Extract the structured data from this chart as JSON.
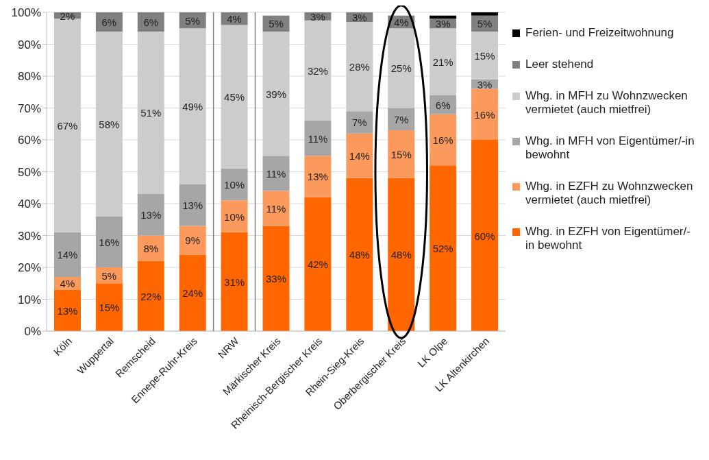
{
  "chart_data": {
    "type": "bar",
    "stacked": true,
    "grid": "y",
    "legend": "right",
    "categories": [
      "Köln",
      "Wuppertal",
      "Remscheid",
      "Ennepe-Ruhr-Kreis",
      "NRW",
      "Märkischer Kreis",
      "Rheinisch-Bergischer Kreis",
      "Rhein-Sieg-Kreis",
      "Oberbergischer Kreis",
      "LK Olpe",
      "LK Altenkirchen"
    ],
    "ylim": [
      0,
      100
    ],
    "yticks": [
      {
        "value": 0,
        "label": "0%"
      },
      {
        "value": 10,
        "label": "10%"
      },
      {
        "value": 20,
        "label": "20%"
      },
      {
        "value": 30,
        "label": "30%"
      },
      {
        "value": 40,
        "label": "40%"
      },
      {
        "value": 50,
        "label": "50%"
      },
      {
        "value": 60,
        "label": "60%"
      },
      {
        "value": 70,
        "label": "70%"
      },
      {
        "value": 80,
        "label": "80%"
      },
      {
        "value": 90,
        "label": "90%"
      },
      {
        "value": 100,
        "label": "100%"
      }
    ],
    "series": [
      {
        "name": "Whg. in EZFH von Eigentümer/-in bewohnt",
        "color": "#ff6600",
        "values": [
          13,
          15,
          22,
          24,
          31,
          33,
          42,
          48,
          48,
          52,
          60
        ],
        "value_labels": [
          "13%",
          "15%",
          "22%",
          "24%",
          "31%",
          "33%",
          "42%",
          "48%",
          "48%",
          "52%",
          "60%"
        ]
      },
      {
        "name": "Whg. in EZFH zu Wohnzwecken vermietet (auch mietfrei)",
        "color": "#fb9a5c",
        "values": [
          4,
          5,
          8,
          9,
          10,
          11,
          13,
          14,
          15,
          16,
          16
        ],
        "value_labels": [
          "4%",
          "5%",
          "8%",
          "9%",
          "10%",
          "11%",
          "13%",
          "14%",
          "15%",
          "16%",
          "16%"
        ]
      },
      {
        "name": "Whg. in MFH von Eigentümer/-in bewohnt",
        "color": "#a6a6a6",
        "values": [
          14,
          16,
          13,
          13,
          10,
          11,
          11,
          7,
          7,
          6,
          3
        ],
        "value_labels": [
          "14%",
          "16%",
          "13%",
          "13%",
          "10%",
          "11%",
          "11%",
          "7%",
          "7%",
          "6%",
          "3%"
        ]
      },
      {
        "name": "Whg. in MFH zu Wohnzwecken vermietet (auch mietfrei)",
        "color": "#cccccc",
        "values": [
          67,
          58,
          51,
          49,
          45,
          39,
          31.5,
          28,
          25,
          21,
          15
        ],
        "value_labels": [
          "67%",
          "58%",
          "51%",
          "49%",
          "45%",
          "39%",
          "32%",
          "28%",
          "25%",
          "21%",
          "15%"
        ]
      },
      {
        "name": "Leer stehend",
        "color": "#808080",
        "values": [
          2,
          6,
          6,
          5,
          4,
          5,
          2.5,
          3,
          4,
          3,
          5
        ],
        "value_labels": [
          "2%",
          "6%",
          "6%",
          "5%",
          "4%",
          "5%",
          "3%",
          "3%",
          "4%",
          "3%",
          "5%"
        ]
      },
      {
        "name": "Ferien- und Freizeitwohnung",
        "color": "#000000",
        "values": [
          0,
          0,
          0,
          0,
          0,
          0,
          0,
          0,
          0,
          1,
          1
        ],
        "value_labels": [
          null,
          null,
          null,
          null,
          null,
          null,
          null,
          null,
          null,
          null,
          null
        ]
      }
    ]
  }
}
